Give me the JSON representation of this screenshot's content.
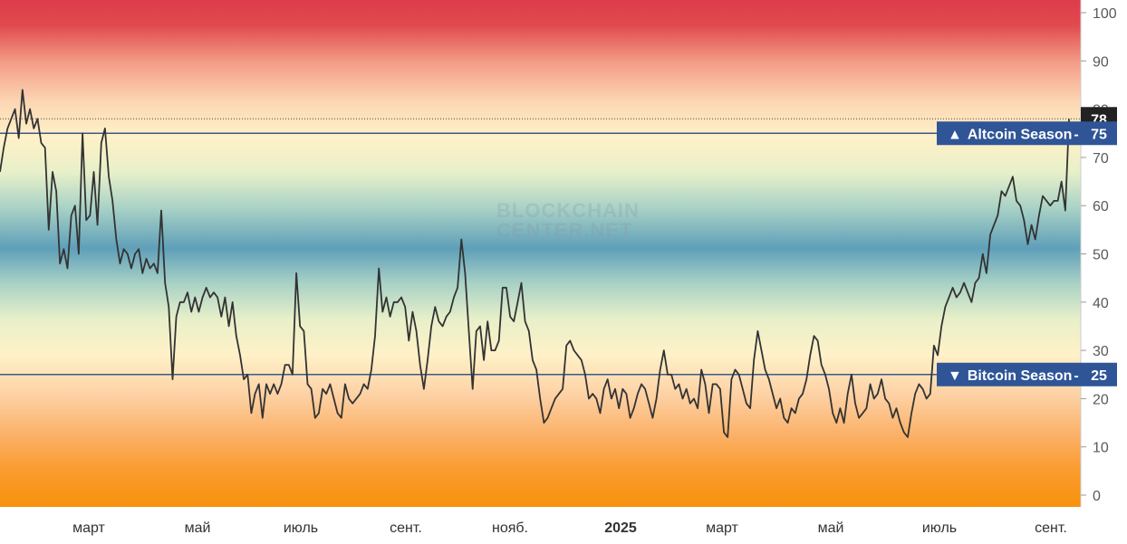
{
  "chart_data": {
    "type": "line",
    "title": "",
    "xlabel": "",
    "ylabel": "",
    "ylim": [
      -2,
      103
    ],
    "yticks": [
      0,
      10,
      20,
      30,
      40,
      50,
      60,
      70,
      80,
      90,
      100
    ],
    "x_tick_labels": [
      "март",
      "май",
      "июль",
      "сент.",
      "нояб.",
      "2025",
      "март",
      "май",
      "июль",
      "сент."
    ],
    "watermark": [
      "BLOCKCHAIN",
      "CENTER.NET"
    ],
    "current_value": 78,
    "thresholds": [
      {
        "name": "Altcoin Season",
        "value": 75,
        "arrow": "▲"
      },
      {
        "name": "Bitcoin Season",
        "value": 25,
        "arrow": "▼"
      }
    ],
    "series": [
      {
        "color": "#333333",
        "values": [
          67,
          72,
          76,
          78,
          80,
          74,
          84,
          77,
          80,
          76,
          78,
          73,
          72,
          55,
          67,
          63,
          48,
          51,
          47,
          58,
          60,
          50,
          75,
          57,
          58,
          67,
          56,
          73,
          76,
          66,
          61,
          53,
          48,
          51,
          50,
          47,
          50,
          51,
          46,
          49,
          47,
          48,
          46,
          59,
          44,
          39,
          24,
          37,
          40,
          40,
          42,
          38,
          41,
          38,
          41,
          43,
          41,
          42,
          41,
          37,
          41,
          35,
          40,
          33,
          29,
          24,
          25,
          17,
          21,
          23,
          16,
          23,
          21,
          23,
          21,
          23,
          27,
          27,
          25,
          46,
          35,
          34,
          23,
          22,
          16,
          17,
          22,
          21,
          23,
          20,
          17,
          16,
          23,
          20,
          19,
          20,
          21,
          23,
          22,
          26,
          33,
          47,
          38,
          41,
          37,
          40,
          40,
          41,
          39,
          32,
          38,
          34,
          27,
          22,
          28,
          35,
          39,
          36,
          35,
          37,
          38,
          41,
          43,
          53,
          46,
          34,
          22,
          34,
          35,
          28,
          36,
          30,
          30,
          32,
          43,
          43,
          37,
          36,
          40,
          44,
          36,
          34,
          28,
          26,
          20,
          15,
          16,
          18,
          20,
          21,
          22,
          31,
          32,
          30,
          29,
          28,
          25,
          20,
          21,
          20,
          17,
          22,
          24,
          20,
          22,
          18,
          22,
          21,
          16,
          18,
          21,
          23,
          22,
          19,
          16,
          20,
          26,
          30,
          25,
          25,
          22,
          23,
          20,
          22,
          19,
          20,
          18,
          26,
          23,
          17,
          23,
          23,
          22,
          13,
          12,
          24,
          26,
          25,
          22,
          19,
          18,
          28,
          34,
          30,
          26,
          24,
          21,
          18,
          20,
          16,
          15,
          18,
          17,
          20,
          21,
          24,
          29,
          33,
          32,
          27,
          25,
          22,
          17,
          15,
          18,
          15,
          21,
          25,
          19,
          16,
          17,
          18,
          23,
          20,
          21,
          24,
          20,
          19,
          16,
          18,
          15,
          13,
          12,
          17,
          21,
          23,
          22,
          20,
          21,
          31,
          29,
          35,
          39,
          41,
          43,
          41,
          42,
          44,
          42,
          40,
          44,
          45,
          50,
          46,
          54,
          56,
          58,
          63,
          62,
          64,
          66,
          61,
          60,
          57,
          52,
          56,
          53,
          58,
          62,
          61,
          60,
          61,
          61,
          65,
          59,
          78
        ]
      }
    ]
  }
}
